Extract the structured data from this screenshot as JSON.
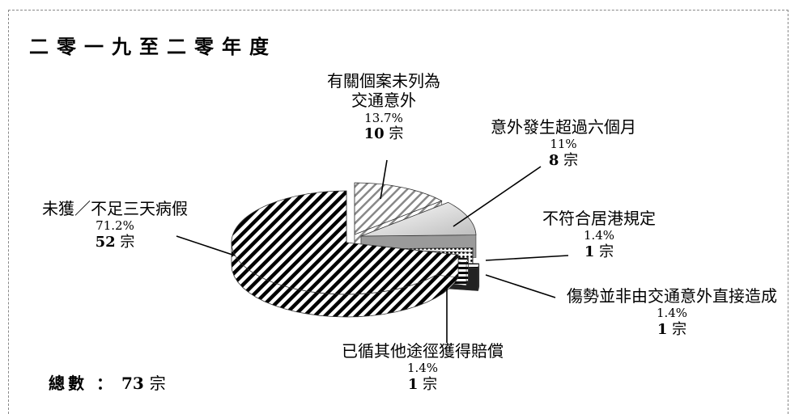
{
  "title": "二零一九至二零年度",
  "total": {
    "label": "總數 ：",
    "count": "73",
    "unit": "宗"
  },
  "chart_data": {
    "type": "pie",
    "slices": [
      {
        "label": "未獲／不足三天病假",
        "percent": 71.2,
        "percent_text": "71.2%",
        "count": 52,
        "count_text": "52",
        "unit": "宗"
      },
      {
        "label": "有關個案未列為交通意外",
        "label_lines": [
          "有關個案未列為",
          "交通意外"
        ],
        "percent": 13.7,
        "percent_text": "13.7%",
        "count": 10,
        "count_text": "10",
        "unit": "宗"
      },
      {
        "label": "意外發生超過六個月",
        "percent": 11,
        "percent_text": "11%",
        "count": 8,
        "count_text": "8",
        "unit": "宗"
      },
      {
        "label": "不符合居港規定",
        "percent": 1.4,
        "percent_text": "1.4%",
        "count": 1,
        "count_text": "1",
        "unit": "宗"
      },
      {
        "label": "傷勢並非由交通意外直接造成",
        "percent": 1.4,
        "percent_text": "1.4%",
        "count": 1,
        "count_text": "1",
        "unit": "宗"
      },
      {
        "label": "已循其他途徑獲得賠償",
        "percent": 1.4,
        "percent_text": "1.4%",
        "count": 1,
        "count_text": "1",
        "unit": "宗"
      }
    ]
  }
}
